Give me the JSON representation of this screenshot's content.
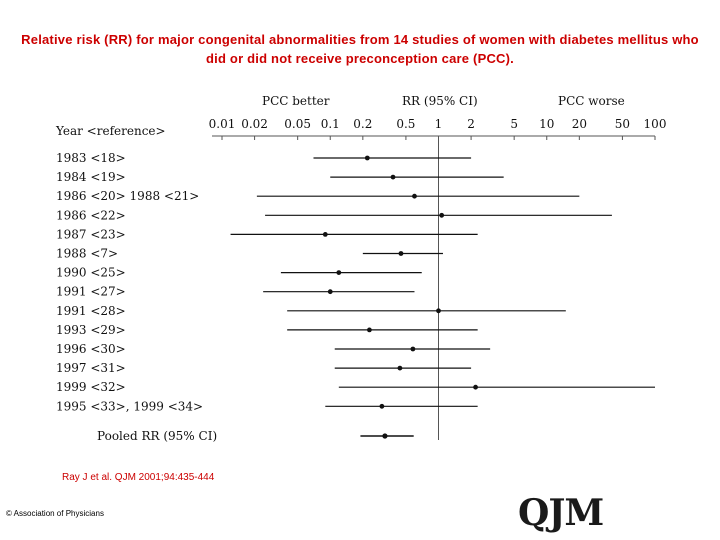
{
  "title": "Relative risk (RR) for major congenital abnormalities from 14 studies of women with diabetes mellitus who did or did not receive preconception care (PCC).",
  "citation": "Ray J et al. QJM 2001;94:435-444",
  "copyright": "© Association of Physicians",
  "logo_text": "QJM",
  "chart_data": {
    "type": "forest",
    "scale": "log",
    "xlim": [
      0.01,
      100
    ],
    "reference_line": 1,
    "header_left": "PCC better",
    "header_center": "RR (95% CI)",
    "header_right": "PCC worse",
    "row_header": "Year <reference>",
    "tick_values": [
      0.01,
      0.02,
      0.05,
      0.1,
      0.2,
      0.5,
      1,
      2,
      5,
      10,
      20,
      50,
      100
    ],
    "tick_labels": [
      "0.01",
      "0.02",
      "0.05",
      "0.1",
      "0.2",
      "0.5",
      "1",
      "2",
      "5",
      "10",
      "20",
      "50",
      "100"
    ],
    "studies": [
      {
        "label": "1983 <18>",
        "rr": 0.22,
        "lo": 0.07,
        "hi": 2.0
      },
      {
        "label": "1984 <19>",
        "rr": 0.38,
        "lo": 0.1,
        "hi": 4.0
      },
      {
        "label": "1986 <20> 1988 <21>",
        "rr": 0.6,
        "lo": 0.021,
        "hi": 20.0
      },
      {
        "label": "1986 <22>",
        "rr": 1.07,
        "lo": 0.025,
        "hi": 40.0
      },
      {
        "label": "1987 <23>",
        "rr": 0.09,
        "lo": 0.012,
        "hi": 2.3
      },
      {
        "label": "1988 <7>",
        "rr": 0.45,
        "lo": 0.2,
        "hi": 1.1
      },
      {
        "label": "1990 <25>",
        "rr": 0.12,
        "lo": 0.035,
        "hi": 0.7
      },
      {
        "label": "1991 <27>",
        "rr": 0.1,
        "lo": 0.024,
        "hi": 0.6
      },
      {
        "label": "1991 <28>",
        "rr": 1.0,
        "lo": 0.04,
        "hi": 15.0
      },
      {
        "label": "1993 <29>",
        "rr": 0.23,
        "lo": 0.04,
        "hi": 2.3
      },
      {
        "label": "1996 <30>",
        "rr": 0.58,
        "lo": 0.11,
        "hi": 3.0
      },
      {
        "label": "1997 <31>",
        "rr": 0.44,
        "lo": 0.11,
        "hi": 2.0
      },
      {
        "label": "1999 <32>",
        "rr": 2.2,
        "lo": 0.12,
        "hi": 100.0
      },
      {
        "label": "1995 <33>, 1999 <34>",
        "rr": 0.3,
        "lo": 0.09,
        "hi": 2.3
      }
    ],
    "pooled": {
      "label": "Pooled RR (95% CI)",
      "rr": 0.32,
      "lo": 0.19,
      "hi": 0.59
    }
  }
}
